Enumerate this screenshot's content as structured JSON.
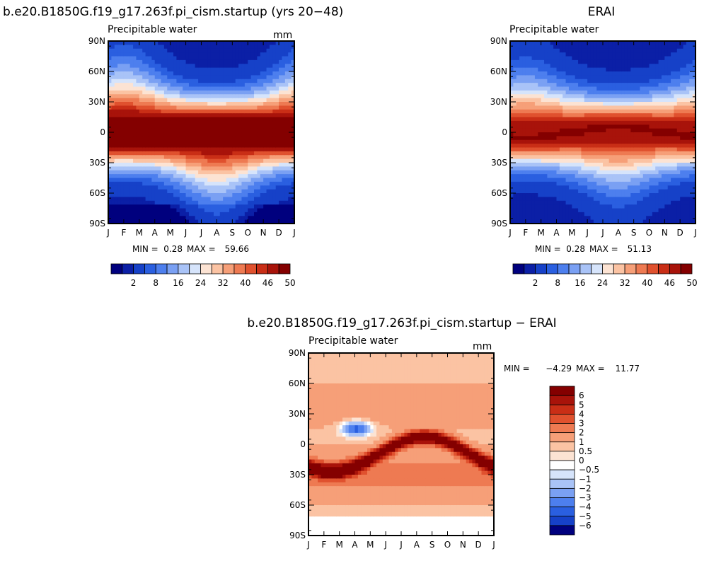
{
  "figure": {
    "panel1_title": "b.e20.B1850G.f19_g17.263f.pi_cism.startup (yrs 20−48)",
    "panel2_title": "ERAI",
    "panel3_title": "b.e20.B1850G.f19_g17.263f.pi_cism.startup − ERAI"
  },
  "chart_data": [
    {
      "type": "heatmap",
      "name": "model",
      "subtitle": "Precipitable water",
      "units": "mm",
      "x_ticks": [
        "J",
        "F",
        "M",
        "A",
        "M",
        "J",
        "J",
        "A",
        "S",
        "O",
        "N",
        "D",
        "J"
      ],
      "y_ticks": [
        "90N",
        "60N",
        "30N",
        "0",
        "30S",
        "60S",
        "90S"
      ],
      "ylim": [
        -90,
        90
      ],
      "min_label": "MIN =",
      "min_value": "0.28",
      "max_label": "MAX =",
      "max_value": "59.66",
      "colorbar_levels": [
        "2",
        "8",
        "16",
        "24",
        "32",
        "40",
        "46",
        "50"
      ],
      "colors": [
        "#00007e",
        "#0b1fa6",
        "#1641c8",
        "#2a5fe0",
        "#4d7fee",
        "#7aa0f3",
        "#a9c3f7",
        "#d6e4fb",
        "#fce3d3",
        "#fbc3a3",
        "#f69f78",
        "#ee7a52",
        "#e0512e",
        "#c92e16",
        "#a8130a",
        "#840000"
      ]
    },
    {
      "type": "heatmap",
      "name": "erai",
      "subtitle": "Precipitable water",
      "x_ticks": [
        "J",
        "F",
        "M",
        "A",
        "M",
        "J",
        "J",
        "A",
        "S",
        "O",
        "N",
        "D",
        "J"
      ],
      "y_ticks": [
        "90N",
        "60N",
        "30N",
        "0",
        "30S",
        "60S",
        "90S"
      ],
      "ylim": [
        -90,
        90
      ],
      "min_label": "MIN =",
      "min_value": "0.28",
      "max_label": "MAX =",
      "max_value": "51.13",
      "colorbar_levels": [
        "2",
        "8",
        "16",
        "24",
        "32",
        "40",
        "46",
        "50"
      ]
    },
    {
      "type": "heatmap",
      "name": "difference",
      "subtitle": "Precipitable water",
      "units": "mm",
      "x_ticks": [
        "J",
        "F",
        "M",
        "A",
        "M",
        "J",
        "J",
        "A",
        "S",
        "O",
        "N",
        "D",
        "J"
      ],
      "y_ticks": [
        "90N",
        "60N",
        "30N",
        "0",
        "30S",
        "60S",
        "90S"
      ],
      "ylim": [
        -90,
        90
      ],
      "min_label": "MIN =",
      "min_value": "−4.29",
      "max_label": "MAX =",
      "max_value": "11.77",
      "colorbar_levels": [
        "6",
        "5",
        "4",
        "3",
        "2",
        "1",
        "0.5",
        "0",
        "−0.5",
        "−1",
        "−2",
        "−3",
        "−4",
        "−5",
        "−6"
      ],
      "colors_top_to_bottom": [
        "#840000",
        "#a8130a",
        "#c92e16",
        "#e0512e",
        "#ee7a52",
        "#f69f78",
        "#fbc3a3",
        "#fce3d3",
        "#ffffff",
        "#d6e4fb",
        "#a9c3f7",
        "#7aa0f3",
        "#4d7fee",
        "#2a5fe0",
        "#1641c8",
        "#00007e"
      ]
    }
  ]
}
